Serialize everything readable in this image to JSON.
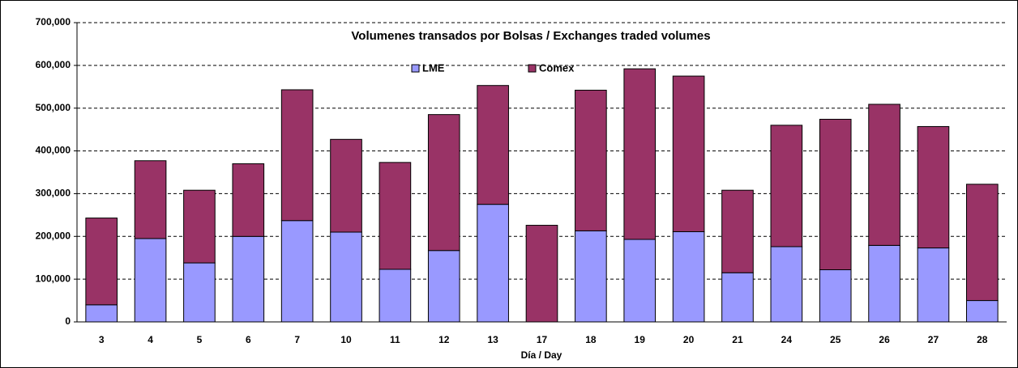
{
  "chart_data": {
    "type": "stacked_bar",
    "title": "Volumenes transados por Bolsas / Exchanges traded volumes",
    "x_label": "Día / Day",
    "categories": [
      "3",
      "4",
      "5",
      "6",
      "7",
      "10",
      "11",
      "12",
      "13",
      "17",
      "18",
      "19",
      "20",
      "21",
      "24",
      "25",
      "26",
      "27",
      "28"
    ],
    "series": [
      {
        "name": "LME",
        "color": "#9999ff",
        "values": [
          40000,
          195000,
          138000,
          200000,
          237000,
          210000,
          123000,
          167000,
          275000,
          0,
          213000,
          193000,
          211000,
          115000,
          176000,
          122000,
          179000,
          173000,
          50000
        ]
      },
      {
        "name": "Comex",
        "color": "#993366",
        "values": [
          203000,
          182000,
          170000,
          170000,
          306000,
          217000,
          250000,
          318000,
          278000,
          226000,
          329000,
          399000,
          364000,
          193000,
          284000,
          352000,
          330000,
          284000,
          272000
        ]
      }
    ],
    "ylim": [
      0,
      700000
    ],
    "yticks": [
      0,
      {
        "value": 100000,
        "label": "100,000"
      },
      {
        "value": 200000,
        "label": "200,000"
      },
      {
        "value": 300000,
        "label": "300,000"
      },
      {
        "value": 400000,
        "label": "400,000"
      },
      {
        "value": 500000,
        "label": "500,000"
      },
      {
        "value": 600000,
        "label": "600,000"
      },
      {
        "value": 700000,
        "label": "700,000"
      }
    ],
    "grid": true
  }
}
